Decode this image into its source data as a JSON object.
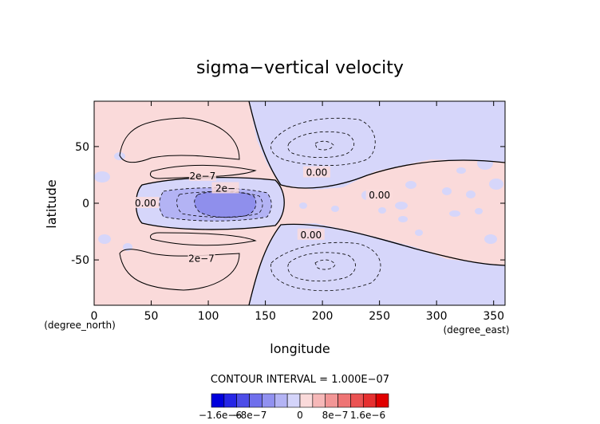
{
  "chart_data": {
    "type": "heatmap",
    "title": "sigma−vertical velocity",
    "xlabel": "longitude",
    "ylabel": "latitude",
    "x_unit_label": "(degree_east)",
    "y_unit_label": "(degree_north)",
    "xlim": [
      0,
      360
    ],
    "ylim": [
      -90,
      90
    ],
    "xticks": [
      0,
      50,
      100,
      150,
      200,
      250,
      300,
      350
    ],
    "yticks": [
      -50,
      0,
      50
    ],
    "contour_interval_text": "CONTOUR INTERVAL = 1.000E−07",
    "contour_labels": [
      {
        "text": "2e−7",
        "lon": 95,
        "lat": 24
      },
      {
        "text": "2e−",
        "lon": 115,
        "lat": 13
      },
      {
        "text": "0.00",
        "lon": 45,
        "lat": 0
      },
      {
        "text": "0.00",
        "lon": 195,
        "lat": 27
      },
      {
        "text": "0.00",
        "lon": 250,
        "lat": 7
      },
      {
        "text": "0.00",
        "lon": 190,
        "lat": -28
      },
      {
        "text": "2e−7",
        "lon": 94,
        "lat": -49
      }
    ],
    "colorbar": {
      "ticks": [
        "−1.6e−6",
        "−8e−7",
        "0",
        "8e−7",
        "1.6e−6"
      ],
      "colors": [
        "#0000dc",
        "#2626e6",
        "#4d4de8",
        "#6f6fec",
        "#9191f0",
        "#b3b3f4",
        "#d4d4fa",
        "#fadada",
        "#f6b8b8",
        "#f29696",
        "#ee7474",
        "#ea5252",
        "#e63030",
        "#e00000"
      ]
    }
  }
}
